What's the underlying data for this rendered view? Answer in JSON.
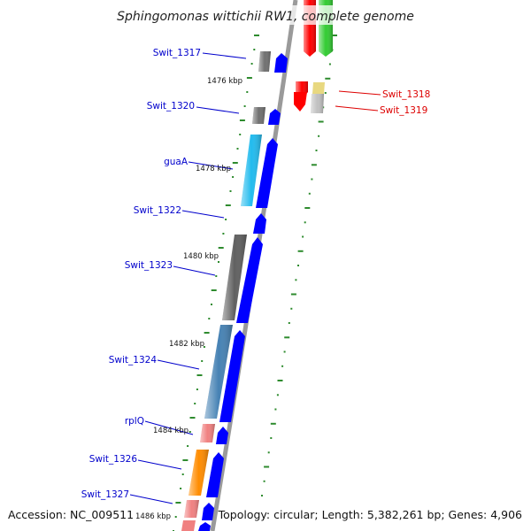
{
  "title": "Sphingomonas wittichii RW1, complete genome",
  "footer": {
    "accession": "Accession: NC_009511",
    "summary": "Topology: circular; Length: 5,382,261 bp; Genes: 4,906"
  },
  "colors": {
    "backbone": "#8c8c8c",
    "cds_forward": "#0000ff",
    "label_blue": "#0000cc",
    "label_red": "#dd0000",
    "tick": "#2e8b2e"
  },
  "kbp_ticks": [
    "1476 kbp",
    "1478 kbp",
    "1480 kbp",
    "1482 kbp",
    "1484 kbp",
    "1486 kbp"
  ],
  "genes": [
    {
      "name": "Swit_1317",
      "color": "#707070",
      "strand": "forward",
      "side": "left"
    },
    {
      "name": "Swit_1318",
      "color": "#ff0000",
      "strand": "reverse",
      "side": "right"
    },
    {
      "name": "Swit_1319",
      "color": "#c8c8c8",
      "strand": "reverse",
      "side": "right"
    },
    {
      "name": "Swit_1320",
      "color": "#707070",
      "strand": "forward",
      "side": "left"
    },
    {
      "name": "guaA",
      "color": "#22bbee",
      "strand": "forward",
      "side": "left"
    },
    {
      "name": "Swit_1322",
      "color": "#707070",
      "strand": "forward",
      "side": "left"
    },
    {
      "name": "Swit_1323",
      "color": "#606060",
      "strand": "forward",
      "side": "left"
    },
    {
      "name": "Swit_1324",
      "color": "#4682b4",
      "strand": "forward",
      "side": "left"
    },
    {
      "name": "rplQ",
      "color": "#f08080",
      "strand": "forward",
      "side": "left"
    },
    {
      "name": "Swit_1326",
      "color": "#ff8c00",
      "strand": "forward",
      "side": "left"
    },
    {
      "name": "Swit_1327",
      "color": "#f08080",
      "strand": "forward",
      "side": "left"
    }
  ]
}
